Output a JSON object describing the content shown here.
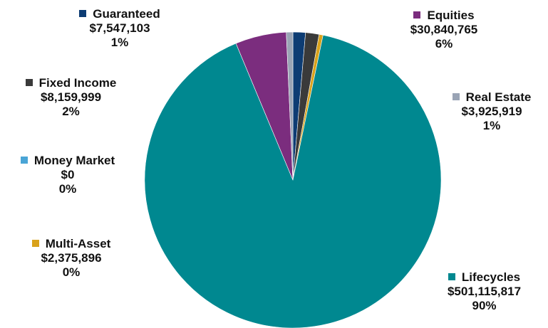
{
  "chart_data": {
    "type": "pie",
    "title": "",
    "slices": [
      {
        "name": "Guaranteed",
        "amount": "$7,547,103",
        "value": 7547103,
        "percent": "1%",
        "color": "#0d3c73"
      },
      {
        "name": "Fixed Income",
        "amount": "$8,159,999",
        "value": 8159999,
        "percent": "2%",
        "color": "#3a3a3a"
      },
      {
        "name": "Multi-Asset",
        "amount": "$2,375,896",
        "value": 2375896,
        "percent": "0%",
        "color": "#d9a21b"
      },
      {
        "name": "Lifecycles",
        "amount": "$501,115,817",
        "value": 501115817,
        "percent": "90%",
        "color": "#008890"
      },
      {
        "name": "Equities",
        "amount": "$30,840,765",
        "value": 30840765,
        "percent": "6%",
        "color": "#7b2d7e"
      },
      {
        "name": "Real Estate",
        "amount": "$3,925,919",
        "value": 3925919,
        "percent": "1%",
        "color": "#9aa4b5"
      },
      {
        "name": "Money Market",
        "amount": "$0",
        "value": 0,
        "percent": "0%",
        "color": "#4aa5d6"
      }
    ],
    "legend": "labels-around-pie"
  }
}
